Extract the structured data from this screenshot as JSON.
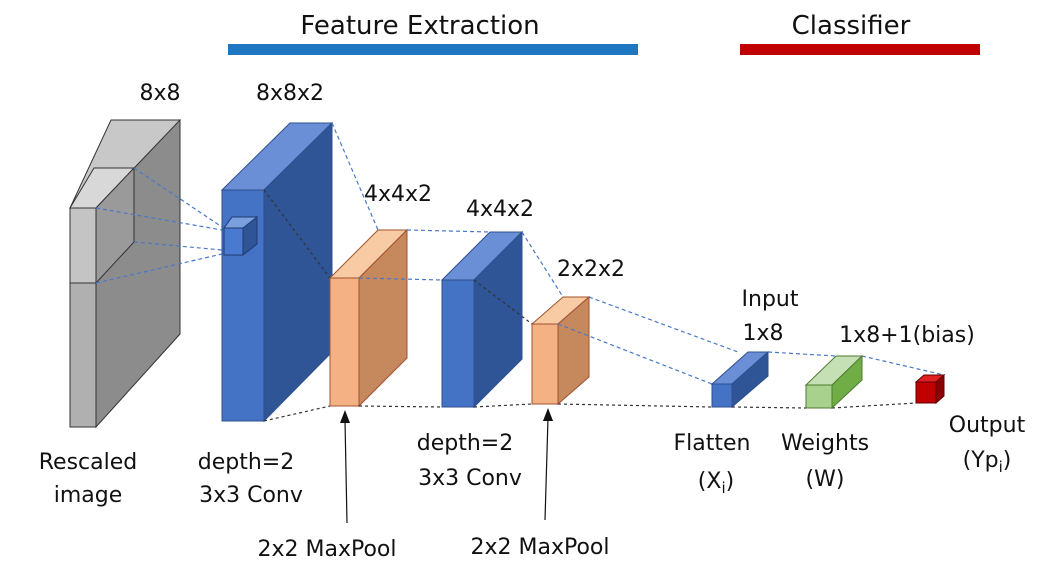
{
  "headers": {
    "feature_extraction": {
      "label": "Feature Extraction",
      "color": "#1f77c4"
    },
    "classifier": {
      "label": "Classifier",
      "color": "#c00000"
    }
  },
  "colors": {
    "gray_face": "#c8c8c8",
    "gray_front": "#b0b0b0",
    "gray_side": "#8c8c8c",
    "blue_face": "#6a8fd6",
    "blue_front": "#4472c4",
    "blue_side": "#2f5597",
    "orange_face": "#f8cba5",
    "orange_front": "#f4b183",
    "orange_side": "#c5895d",
    "green_face": "#c5e0b4",
    "green_front": "#a9d18e",
    "green_side": "#70ad47",
    "red_face": "#e02020",
    "red_front": "#c00000",
    "red_side": "#8b0000"
  },
  "blocks": {
    "input": {
      "dim": "8x8",
      "label_line1": "Rescaled",
      "label_line2": "image"
    },
    "conv1": {
      "dim": "8x8x2",
      "label_line1": "depth=2",
      "label_line2": "3x3 Conv"
    },
    "pool1": {
      "dim": "4x4x2",
      "arrow_label": "2x2 MaxPool"
    },
    "conv2": {
      "dim": "4x4x2",
      "label_line1": "depth=2",
      "label_line2": "3x3 Conv"
    },
    "pool2": {
      "dim": "2x2x2",
      "arrow_label": "2x2 MaxPool"
    },
    "flatten": {
      "top_line1": "Input",
      "top_line2": "1x8",
      "label_line1": "Flatten",
      "label_prefix": "(X",
      "label_sub": "i",
      "label_suffix": ")"
    },
    "weights": {
      "dim": "1x8+1(bias)",
      "label_line1": "Weights",
      "label_line2": "(W)"
    },
    "output": {
      "label_line1": "Output",
      "label_prefix": "(Yp",
      "label_sub": "i",
      "label_suffix": ")"
    }
  }
}
